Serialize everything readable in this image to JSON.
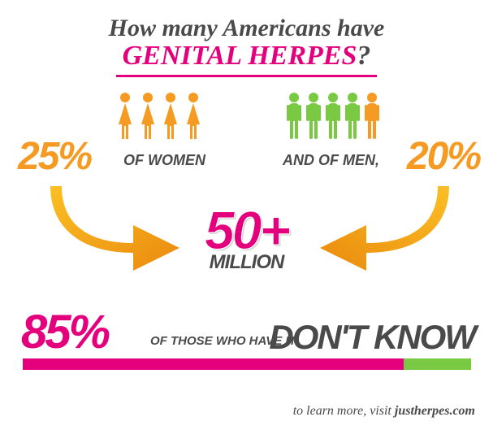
{
  "title": {
    "line1": "How many Americans have",
    "line2": "GENITAL HERPES",
    "q": "?"
  },
  "women": {
    "pct": "25%",
    "label": "OF WOMEN",
    "icon_count": 4,
    "icon_color": "#f59a22",
    "alt_color": "#7ac943"
  },
  "men": {
    "pct": "20%",
    "label": "AND OF MEN,",
    "icon_count": 5,
    "icon_color": "#7ac943",
    "highlight_color": "#f59a22",
    "highlight_index": 4
  },
  "center": {
    "number": "50+",
    "unit": "MILLION"
  },
  "bottom": {
    "pct": "85%",
    "pct_value": 85,
    "of_text": "OF THOSE WHO HAVE IT",
    "dont_know": "DON'T KNOW",
    "bar_fill_color": "#e4007d",
    "bar_bg_color": "#7ac943"
  },
  "footer": {
    "prefix": "to learn more, visit ",
    "site": "justherpes.com"
  },
  "colors": {
    "pink": "#e4007d",
    "orange": "#f59a22",
    "green": "#7ac943",
    "dark": "#4a4a4a"
  }
}
